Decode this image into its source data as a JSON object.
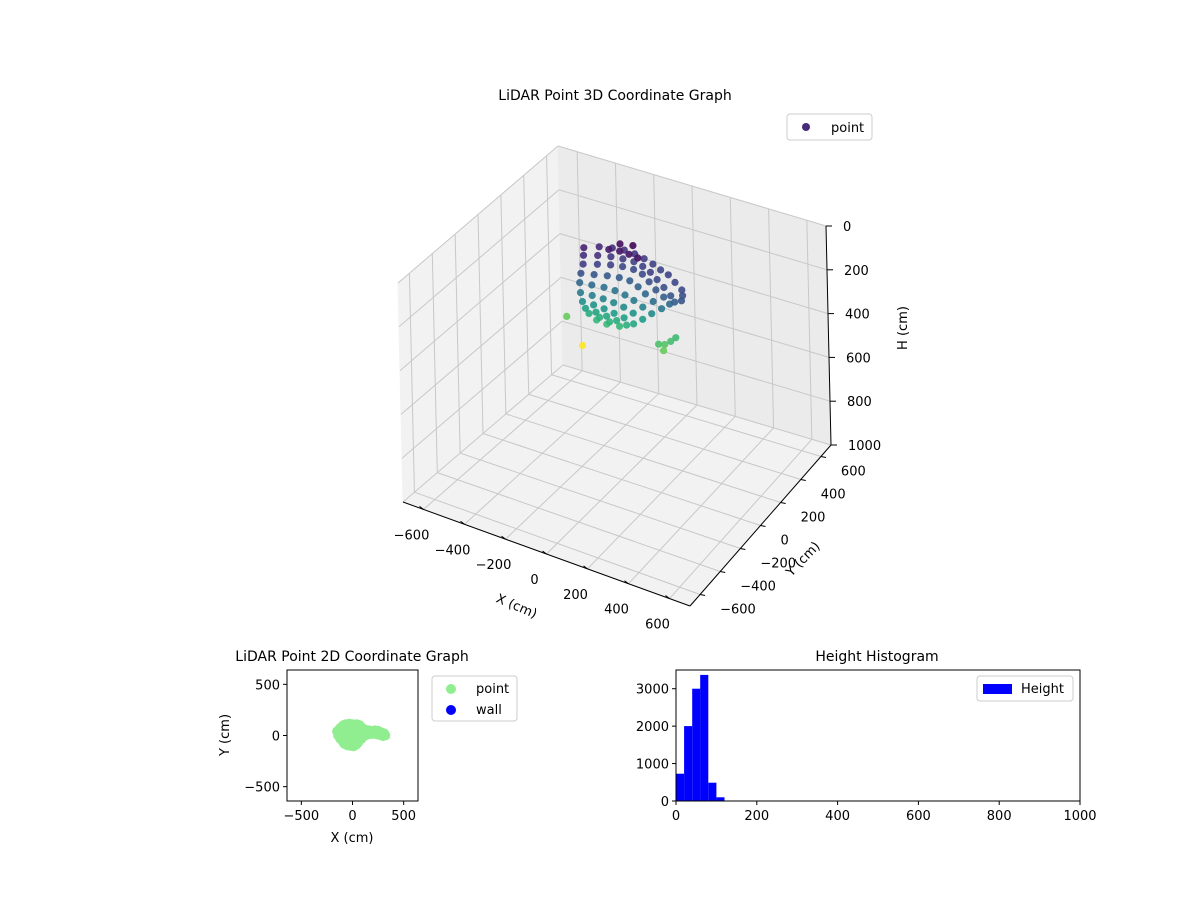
{
  "chart_data": [
    {
      "type": "scatter",
      "projection": "3d",
      "title": "LiDAR Point 3D Coordinate Graph",
      "xlabel": "X (cm)",
      "ylabel": "Y (cm)",
      "zlabel": "H (cm)",
      "xlim": [
        -700,
        700
      ],
      "ylim": [
        -700,
        700
      ],
      "zlim": [
        1000,
        0
      ],
      "z_inverted": true,
      "xticks": [
        -600,
        -400,
        -200,
        0,
        200,
        400,
        600
      ],
      "yticks": [
        -600,
        -400,
        -200,
        0,
        200,
        400,
        600
      ],
      "zticks": [
        0,
        200,
        400,
        600,
        800,
        1000
      ],
      "grid": true,
      "legend": {
        "entries": [
          "point"
        ],
        "placement": "upper-right"
      },
      "colormap": "viridis",
      "color_range": [
        0,
        300
      ],
      "series": [
        {
          "name": "point",
          "color": "#472c7a",
          "points": [
            [
              -200,
              60,
              30
            ],
            [
              -150,
              110,
              35
            ],
            [
              -100,
              140,
              40
            ],
            [
              -50,
              160,
              45
            ],
            [
              0,
              165,
              50
            ],
            [
              50,
              160,
              55
            ],
            [
              100,
              150,
              60
            ],
            [
              150,
              130,
              62
            ],
            [
              200,
              110,
              60
            ],
            [
              250,
              80,
              65
            ],
            [
              300,
              50,
              70
            ],
            [
              320,
              20,
              75
            ],
            [
              330,
              -10,
              80
            ],
            [
              -180,
              20,
              40
            ],
            [
              -130,
              60,
              45
            ],
            [
              -80,
              90,
              50
            ],
            [
              -30,
              110,
              55
            ],
            [
              20,
              120,
              58
            ],
            [
              70,
              110,
              60
            ],
            [
              120,
              90,
              62
            ],
            [
              170,
              60,
              66
            ],
            [
              220,
              30,
              72
            ],
            [
              270,
              0,
              80
            ],
            [
              300,
              -20,
              90
            ],
            [
              -160,
              -20,
              55
            ],
            [
              -110,
              20,
              60
            ],
            [
              -60,
              50,
              62
            ],
            [
              -10,
              70,
              65
            ],
            [
              40,
              80,
              68
            ],
            [
              90,
              70,
              70
            ],
            [
              140,
              40,
              75
            ],
            [
              190,
              10,
              82
            ],
            [
              240,
              -10,
              90
            ],
            [
              280,
              -30,
              100
            ],
            [
              -150,
              -60,
              75
            ],
            [
              -100,
              -30,
              80
            ],
            [
              -50,
              0,
              85
            ],
            [
              0,
              20,
              88
            ],
            [
              50,
              25,
              90
            ],
            [
              100,
              10,
              95
            ],
            [
              150,
              -15,
              100
            ],
            [
              200,
              -35,
              110
            ],
            [
              250,
              -50,
              120
            ],
            [
              -140,
              -90,
              100
            ],
            [
              -90,
              -70,
              105
            ],
            [
              -40,
              -50,
              110
            ],
            [
              10,
              -40,
              115
            ],
            [
              60,
              -40,
              120
            ],
            [
              110,
              -50,
              125
            ],
            [
              160,
              -60,
              135
            ],
            [
              210,
              -70,
              145
            ],
            [
              -120,
              -120,
              125
            ],
            [
              -70,
              -105,
              130
            ],
            [
              -20,
              -95,
              135
            ],
            [
              30,
              -90,
              140
            ],
            [
              80,
              -90,
              145
            ],
            [
              130,
              -95,
              155
            ],
            [
              180,
              -100,
              165
            ],
            [
              -100,
              -140,
              150
            ],
            [
              -50,
              -130,
              155
            ],
            [
              0,
              -125,
              160
            ],
            [
              50,
              -125,
              165
            ],
            [
              100,
              -125,
              170
            ],
            [
              150,
              -130,
              180
            ],
            [
              -80,
              -150,
              170
            ],
            [
              -30,
              -145,
              175
            ],
            [
              20,
              -140,
              180
            ],
            [
              70,
              -140,
              185
            ],
            [
              120,
              -140,
              190
            ],
            [
              -60,
              -155,
              185
            ],
            [
              -10,
              -150,
              190
            ],
            [
              40,
              -150,
              195
            ],
            [
              90,
              -150,
              200
            ],
            [
              -20,
              -160,
              200
            ],
            [
              30,
              -158,
              205
            ],
            [
              -90,
              90,
              20
            ],
            [
              -40,
              100,
              18
            ],
            [
              10,
              95,
              15
            ],
            [
              60,
              85,
              12
            ],
            [
              -60,
              140,
              10
            ],
            [
              0,
              150,
              5
            ],
            [
              330,
              -120,
              210
            ],
            [
              310,
              -140,
              220
            ],
            [
              290,
              -160,
              215
            ],
            [
              340,
              -90,
              205
            ],
            [
              320,
              -170,
              230
            ],
            [
              -170,
              -160,
              230
            ],
            [
              -60,
              -220,
              300
            ]
          ]
        }
      ]
    },
    {
      "type": "scatter",
      "title": "LiDAR Point 2D Coordinate Graph",
      "xlabel": "X (cm)",
      "ylabel": "Y (cm)",
      "xlim": [
        -640,
        640
      ],
      "ylim": [
        -640,
        640
      ],
      "xticks": [
        -500,
        0,
        500
      ],
      "yticks": [
        -500,
        0,
        500
      ],
      "grid": false,
      "legend": {
        "entries": [
          "point",
          "wall"
        ],
        "placement": "outside-right"
      },
      "series": [
        {
          "name": "point",
          "color": "#90ee90",
          "points": [
            [
              -150,
              40
            ],
            [
              -140,
              0
            ],
            [
              -130,
              60
            ],
            [
              -120,
              -30
            ],
            [
              -110,
              80
            ],
            [
              -100,
              20
            ],
            [
              -95,
              -60
            ],
            [
              -90,
              100
            ],
            [
              -80,
              -80
            ],
            [
              -70,
              50
            ],
            [
              -65,
              110
            ],
            [
              -60,
              -10
            ],
            [
              -50,
              -95
            ],
            [
              -40,
              80
            ],
            [
              -30,
              115
            ],
            [
              -25,
              20
            ],
            [
              -20,
              -100
            ],
            [
              -10,
              60
            ],
            [
              0,
              110
            ],
            [
              5,
              -40
            ],
            [
              10,
              -105
            ],
            [
              20,
              90
            ],
            [
              30,
              30
            ],
            [
              35,
              -90
            ],
            [
              40,
              110
            ],
            [
              50,
              -10
            ],
            [
              55,
              -70
            ],
            [
              60,
              80
            ],
            [
              70,
              100
            ],
            [
              80,
              40
            ],
            [
              90,
              -30
            ],
            [
              100,
              70
            ],
            [
              110,
              60
            ],
            [
              120,
              20
            ],
            [
              130,
              55
            ],
            [
              140,
              40
            ],
            [
              150,
              10
            ],
            [
              160,
              50
            ],
            [
              170,
              30
            ],
            [
              180,
              45
            ],
            [
              190,
              15
            ],
            [
              200,
              40
            ],
            [
              210,
              20
            ],
            [
              220,
              50
            ],
            [
              230,
              30
            ],
            [
              240,
              10
            ],
            [
              250,
              45
            ],
            [
              260,
              20
            ],
            [
              270,
              35
            ],
            [
              280,
              0
            ],
            [
              290,
              25
            ],
            [
              300,
              -5
            ],
            [
              310,
              20
            ],
            [
              320,
              0
            ],
            [
              -120,
              70
            ],
            [
              -85,
              -40
            ],
            [
              -45,
              30
            ],
            [
              15,
              50
            ],
            [
              45,
              -50
            ],
            [
              75,
              -20
            ],
            [
              -135,
              20
            ],
            [
              -100,
              -50
            ],
            [
              -20,
              -60
            ],
            [
              25,
              -80
            ],
            [
              -55,
              95
            ],
            [
              65,
              0
            ],
            [
              95,
              10
            ],
            [
              125,
              0
            ],
            [
              -5,
              -25
            ],
            [
              -75,
              10
            ]
          ]
        },
        {
          "name": "wall",
          "color": "#0000ff",
          "points": []
        }
      ]
    },
    {
      "type": "bar",
      "title": "Height Histogram",
      "xlabel": "",
      "ylabel": "",
      "xlim": [
        0,
        1000
      ],
      "ylim": [
        0,
        3500
      ],
      "xticks": [
        0,
        200,
        400,
        600,
        800,
        1000
      ],
      "yticks": [
        0,
        1000,
        2000,
        3000
      ],
      "grid": false,
      "legend": {
        "entries": [
          "Height"
        ],
        "placement": "upper-right"
      },
      "series": [
        {
          "name": "Height",
          "color": "#0000ff",
          "bin_edges": [
            0,
            20,
            40,
            60,
            80,
            100,
            120
          ],
          "values": [
            730,
            2000,
            3000,
            3370,
            490,
            100
          ]
        }
      ]
    }
  ]
}
